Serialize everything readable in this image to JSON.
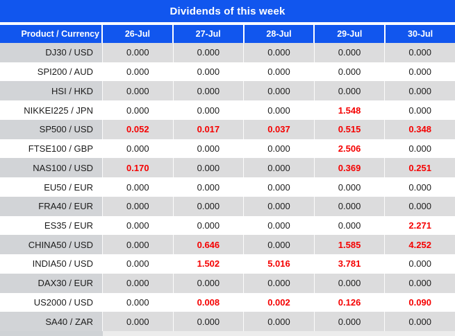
{
  "colors": {
    "header_blue": "#1156ee",
    "value_red": "#f50000",
    "row_gray": "#dcdcdd",
    "label_gray": "#d2d4d7",
    "text_dark": "#1b1b1b"
  },
  "chart_data": {
    "type": "table",
    "title": "Dividends of this week",
    "columns": [
      "Product / Currency",
      "26-Jul",
      "27-Jul",
      "28-Jul",
      "29-Jul",
      "30-Jul"
    ],
    "rows": [
      [
        "DJ30 / USD",
        "0.000",
        "0.000",
        "0.000",
        "0.000",
        "0.000"
      ],
      [
        "SPI200 / AUD",
        "0.000",
        "0.000",
        "0.000",
        "0.000",
        "0.000"
      ],
      [
        "HSI / HKD",
        "0.000",
        "0.000",
        "0.000",
        "0.000",
        "0.000"
      ],
      [
        "NIKKEI225 / JPN",
        "0.000",
        "0.000",
        "0.000",
        "1.548",
        "0.000"
      ],
      [
        "SP500 / USD",
        "0.052",
        "0.017",
        "0.037",
        "0.515",
        "0.348"
      ],
      [
        "FTSE100 / GBP",
        "0.000",
        "0.000",
        "0.000",
        "2.506",
        "0.000"
      ],
      [
        "NAS100 / USD",
        "0.170",
        "0.000",
        "0.000",
        "0.369",
        "0.251"
      ],
      [
        "EU50 / EUR",
        "0.000",
        "0.000",
        "0.000",
        "0.000",
        "0.000"
      ],
      [
        "FRA40 / EUR",
        "0.000",
        "0.000",
        "0.000",
        "0.000",
        "0.000"
      ],
      [
        "ES35 / EUR",
        "0.000",
        "0.000",
        "0.000",
        "0.000",
        "2.271"
      ],
      [
        "CHINA50 / USD",
        "0.000",
        "0.646",
        "0.000",
        "1.585",
        "4.252"
      ],
      [
        "INDIA50 / USD",
        "0.000",
        "1.502",
        "5.016",
        "3.781",
        "0.000"
      ],
      [
        "DAX30 / EUR",
        "0.000",
        "0.000",
        "0.000",
        "0.000",
        "0.000"
      ],
      [
        "US2000 / USD",
        "0.000",
        "0.008",
        "0.002",
        "0.126",
        "0.090"
      ],
      [
        "SA40 / ZAR",
        "0.000",
        "0.000",
        "0.000",
        "0.000",
        "0.000"
      ]
    ],
    "style_notes": {
      "zero_value_text": "black regular",
      "nonzero_value_text": "red bold",
      "row_striping": "odd rows gray, even rows white, starting gray"
    }
  }
}
